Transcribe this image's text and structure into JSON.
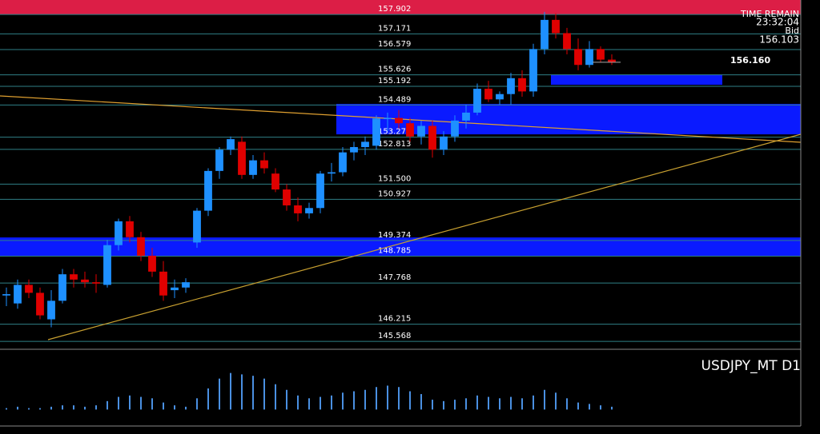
{
  "chart_data": {
    "type": "candlestick",
    "symbol_label": "USDJPY_MT D1",
    "time_remain_label": "TIME REMAIN",
    "time_remain": "23:32:04",
    "bid_label": "Bid",
    "bid": 156.103,
    "marker": {
      "value": 156.16,
      "label": "156.160"
    },
    "ylim": [
      145.27,
      158.45
    ],
    "up_color": "#1e90ff",
    "down_color": "#e00000",
    "level_color": "#2f7f86",
    "levels": [
      157.902,
      157.171,
      156.579,
      155.626,
      155.192,
      154.489,
      153.273,
      152.813,
      {
        "value": 151.5,
        "label": "151.500"
      },
      150.927,
      149.374,
      148.785,
      147.768,
      146.215,
      145.568
    ],
    "zones": [
      [
        155.25,
        155.64
      ],
      [
        153.38,
        154.53
      ],
      [
        148.8,
        149.49
      ]
    ],
    "zone_color": "#0a1aff",
    "candles": [
      [
        147.3,
        147.6,
        146.9,
        147.35
      ],
      [
        147.0,
        147.9,
        146.8,
        147.7
      ],
      [
        147.7,
        147.9,
        147.2,
        147.4
      ],
      [
        147.4,
        147.6,
        146.4,
        146.55
      ],
      [
        146.4,
        147.5,
        146.1,
        147.1
      ],
      [
        147.1,
        148.3,
        147.0,
        148.1
      ],
      [
        148.1,
        148.3,
        147.6,
        147.9
      ],
      [
        147.9,
        148.2,
        147.6,
        147.8
      ],
      [
        147.8,
        148.1,
        147.4,
        147.75
      ],
      [
        147.7,
        149.4,
        147.6,
        149.2
      ],
      [
        149.2,
        150.2,
        149.0,
        150.1
      ],
      [
        150.1,
        150.3,
        149.3,
        149.5
      ],
      [
        149.5,
        149.7,
        148.6,
        148.8
      ],
      [
        148.8,
        149.1,
        148.0,
        148.2
      ],
      [
        148.2,
        148.6,
        147.1,
        147.3
      ],
      [
        147.5,
        147.9,
        147.2,
        147.6
      ],
      [
        147.6,
        147.95,
        147.4,
        147.8
      ],
      [
        149.3,
        150.6,
        149.1,
        150.5
      ],
      [
        150.5,
        152.1,
        150.3,
        152.0
      ],
      [
        152.0,
        152.9,
        151.7,
        152.8
      ],
      [
        152.8,
        153.3,
        152.6,
        153.2
      ],
      [
        153.1,
        153.3,
        151.7,
        151.85
      ],
      [
        151.85,
        152.6,
        151.7,
        152.4
      ],
      [
        152.4,
        152.7,
        151.9,
        152.1
      ],
      [
        151.9,
        152.1,
        151.2,
        151.3
      ],
      [
        151.3,
        151.5,
        150.5,
        150.7
      ],
      [
        150.7,
        151.0,
        150.1,
        150.4
      ],
      [
        150.4,
        150.8,
        150.2,
        150.6
      ],
      [
        150.6,
        152.0,
        150.4,
        151.9
      ],
      [
        151.9,
        152.3,
        151.6,
        151.95
      ],
      [
        151.95,
        152.9,
        151.8,
        152.7
      ],
      [
        152.7,
        153.1,
        152.4,
        152.9
      ],
      [
        152.9,
        153.3,
        152.6,
        153.1
      ],
      [
        152.95,
        154.1,
        152.8,
        153.98
      ],
      [
        153.98,
        154.2,
        153.5,
        154.0
      ],
      [
        154.0,
        154.3,
        153.6,
        153.8
      ],
      [
        153.8,
        154.0,
        153.1,
        153.3
      ],
      [
        153.3,
        153.9,
        153.0,
        153.7
      ],
      [
        153.7,
        153.9,
        152.5,
        152.8
      ],
      [
        152.8,
        153.5,
        152.6,
        153.3
      ],
      [
        153.3,
        154.1,
        153.1,
        153.9
      ],
      [
        153.9,
        154.5,
        153.6,
        154.2
      ],
      [
        154.2,
        155.3,
        154.1,
        155.1
      ],
      [
        155.1,
        155.4,
        154.6,
        154.7
      ],
      [
        154.7,
        155.0,
        154.5,
        154.9
      ],
      [
        154.9,
        155.7,
        154.5,
        155.5
      ],
      [
        155.5,
        155.8,
        154.8,
        155.0
      ],
      [
        155.0,
        156.8,
        154.8,
        156.6
      ],
      [
        156.6,
        158.0,
        156.4,
        157.7
      ],
      [
        157.7,
        157.95,
        157.0,
        157.2
      ],
      [
        157.2,
        157.4,
        156.4,
        156.6
      ],
      [
        156.6,
        157.0,
        155.8,
        156.0
      ],
      [
        156.0,
        156.9,
        155.9,
        156.6
      ],
      [
        156.6,
        156.7,
        156.1,
        156.2
      ],
      [
        156.2,
        156.4,
        156.0,
        156.1
      ]
    ],
    "indicator": {
      "ylim": [
        -1,
        4
      ],
      "color": "#4a90e2",
      "values": [
        0.1,
        0.2,
        0.1,
        0.1,
        0.2,
        0.3,
        0.3,
        0.2,
        0.3,
        0.6,
        0.9,
        1.0,
        0.9,
        0.8,
        0.5,
        0.3,
        0.2,
        0.8,
        1.5,
        2.2,
        2.6,
        2.5,
        2.4,
        2.2,
        1.8,
        1.4,
        1.0,
        0.8,
        0.9,
        1.0,
        1.2,
        1.3,
        1.4,
        1.6,
        1.7,
        1.6,
        1.3,
        1.1,
        0.7,
        0.6,
        0.7,
        0.8,
        1.0,
        0.9,
        0.8,
        0.9,
        0.8,
        1.0,
        1.4,
        1.2,
        0.8,
        0.5,
        0.4,
        0.3,
        0.2
      ]
    }
  }
}
